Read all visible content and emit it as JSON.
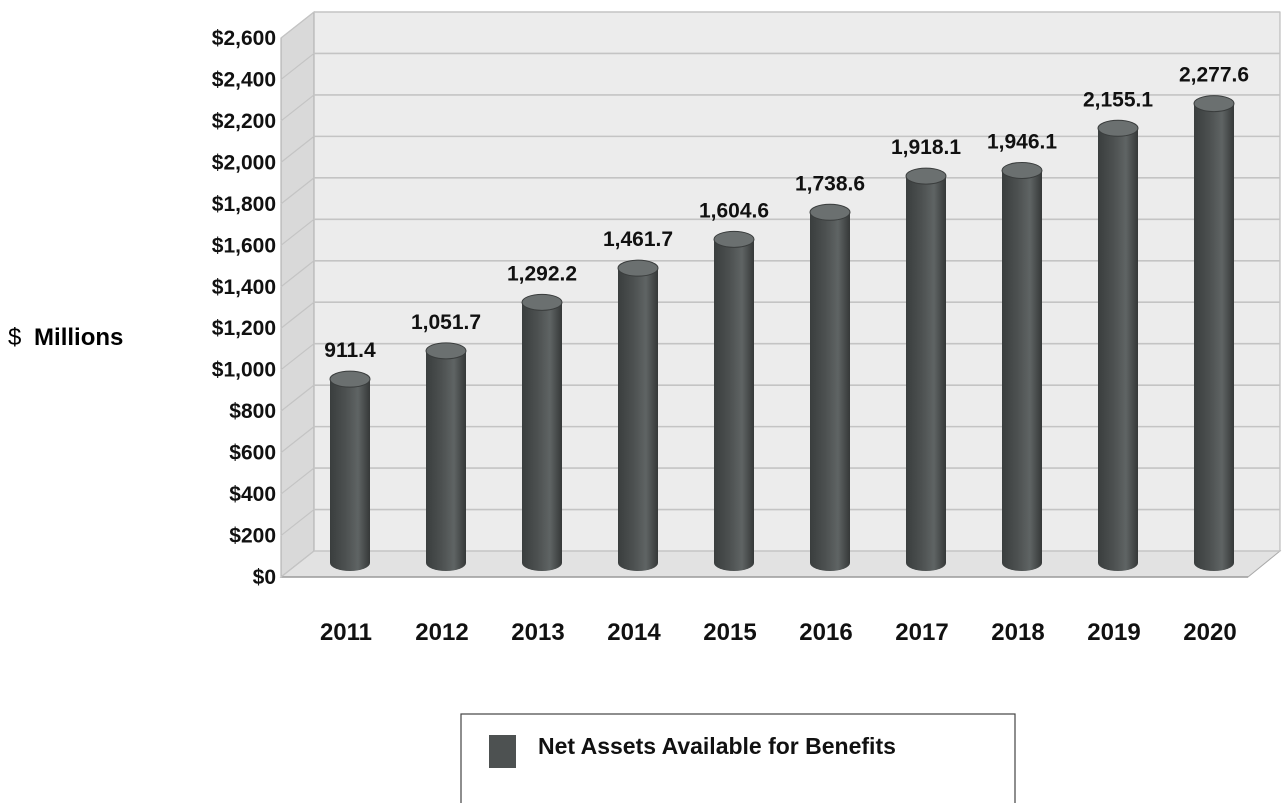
{
  "chart_data": {
    "type": "bar",
    "style": "3d-cylinder",
    "title": "",
    "ylabel_prefix": "$",
    "ylabel_main": "Millions",
    "xlabel": "",
    "categories": [
      "2011",
      "2012",
      "2013",
      "2014",
      "2015",
      "2016",
      "2017",
      "2018",
      "2019",
      "2020"
    ],
    "series": [
      {
        "name": "Net Assets Available for Benefits",
        "values": [
          911.4,
          1051.7,
          1292.2,
          1461.7,
          1604.6,
          1738.6,
          1918.1,
          1946.1,
          2155.1,
          2277.6
        ],
        "labels": [
          "911.4",
          "1,051.7",
          "1,292.2",
          "1,461.7",
          "1,604.6",
          "1,738.6",
          "1,918.1",
          "1,946.1",
          "2,155.1",
          "2,277.6"
        ],
        "color": "#4d5151"
      }
    ],
    "ylim": [
      0,
      2600
    ],
    "yticks": [
      0,
      200,
      400,
      600,
      800,
      1000,
      1200,
      1400,
      1600,
      1800,
      2000,
      2200,
      2400,
      2600
    ],
    "ytick_labels": [
      "$0",
      "$200",
      "$400",
      "$600",
      "$800",
      "$1,000",
      "$1,200",
      "$1,400",
      "$1,600",
      "$1,800",
      "$2,000",
      "$2,200",
      "$2,400",
      "$2,600"
    ],
    "grid": true,
    "legend_position": "bottom-center",
    "wall_color": "#ececec",
    "grid_color": "#c4c4c4"
  }
}
